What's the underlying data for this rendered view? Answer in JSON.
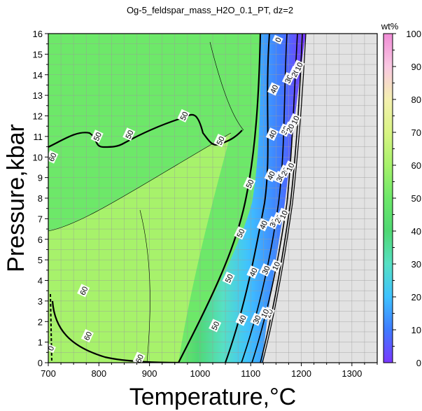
{
  "chart_data": {
    "type": "heatmap",
    "title": "Og-5_feldspar_mass_H2O_0.1_PT, dz=2",
    "xlabel": "Temperature,°C",
    "ylabel": "Pressure,kbar",
    "xlim": [
      700,
      1350
    ],
    "ylim": [
      0,
      16
    ],
    "x_ticks": [
      700,
      800,
      900,
      1000,
      1100,
      1200,
      1300
    ],
    "y_ticks": [
      0,
      1,
      2,
      3,
      4,
      5,
      6,
      7,
      8,
      9,
      10,
      11,
      12,
      13,
      14,
      15,
      16
    ],
    "grid": true,
    "colorbar": {
      "label": "wt%",
      "range": [
        0,
        100
      ],
      "ticks": [
        0,
        10,
        20,
        30,
        40,
        50,
        60,
        70,
        80,
        90,
        100
      ],
      "colors": [
        "#7a38ff",
        "#3f7bff",
        "#3fc2ff",
        "#56e0c4",
        "#4fd873",
        "#6de869",
        "#a7f26b",
        "#d9f484",
        "#f4f0b0",
        "#f9c8e2",
        "#f08cd6"
      ]
    },
    "no_data_color": "#e2e2e2",
    "contour_labels": [
      {
        "text": "60",
        "x": 708,
        "y": 10.0
      },
      {
        "text": "50",
        "x": 797,
        "y": 11.0
      },
      {
        "text": "50",
        "x": 860,
        "y": 11.1
      },
      {
        "text": "50",
        "x": 968,
        "y": 12.0
      },
      {
        "text": "50",
        "x": 1040,
        "y": 10.8
      },
      {
        "text": "50",
        "x": 1098,
        "y": 8.7
      },
      {
        "text": "50",
        "x": 1080,
        "y": 6.3
      },
      {
        "text": "50",
        "x": 1057,
        "y": 4.1
      },
      {
        "text": "50",
        "x": 1030,
        "y": 1.8
      },
      {
        "text": "60",
        "x": 770,
        "y": 3.5
      },
      {
        "text": "60",
        "x": 778,
        "y": 1.3
      },
      {
        "text": "60",
        "x": 880,
        "y": 0.2
      },
      {
        "text": "40",
        "x": 1146,
        "y": 13.3
      },
      {
        "text": "40",
        "x": 1143,
        "y": 11.1
      },
      {
        "text": "40",
        "x": 1140,
        "y": 9.1
      },
      {
        "text": "40",
        "x": 1125,
        "y": 6.7
      },
      {
        "text": "40",
        "x": 1105,
        "y": 4.4
      },
      {
        "text": "40",
        "x": 1083,
        "y": 2.1
      },
      {
        "text": "30",
        "x": 1175,
        "y": 13.8
      },
      {
        "text": "30",
        "x": 1168,
        "y": 11.3
      },
      {
        "text": "30",
        "x": 1158,
        "y": 9.0
      },
      {
        "text": "30",
        "x": 1145,
        "y": 6.8
      },
      {
        "text": "30",
        "x": 1130,
        "y": 4.5
      },
      {
        "text": "30",
        "x": 1112,
        "y": 2.1
      },
      {
        "text": "20",
        "x": 1188,
        "y": 14.1
      },
      {
        "text": "20",
        "x": 1178,
        "y": 11.4
      },
      {
        "text": "20",
        "x": 1168,
        "y": 9.3
      },
      {
        "text": "20",
        "x": 1155,
        "y": 7.0
      },
      {
        "text": "20",
        "x": 1136,
        "y": 2.4
      },
      {
        "text": "10",
        "x": 1195,
        "y": 14.4
      },
      {
        "text": "10",
        "x": 1188,
        "y": 11.8
      },
      {
        "text": "10",
        "x": 1178,
        "y": 9.5
      },
      {
        "text": "10",
        "x": 1165,
        "y": 7.2
      },
      {
        "text": "10",
        "x": 1150,
        "y": 4.7
      },
      {
        "text": "10",
        "x": 1128,
        "y": 2.4
      },
      {
        "text": "0",
        "x": 1154,
        "y": 15.7
      },
      {
        "text": "0",
        "x": 705,
        "y": 0.7
      }
    ]
  }
}
